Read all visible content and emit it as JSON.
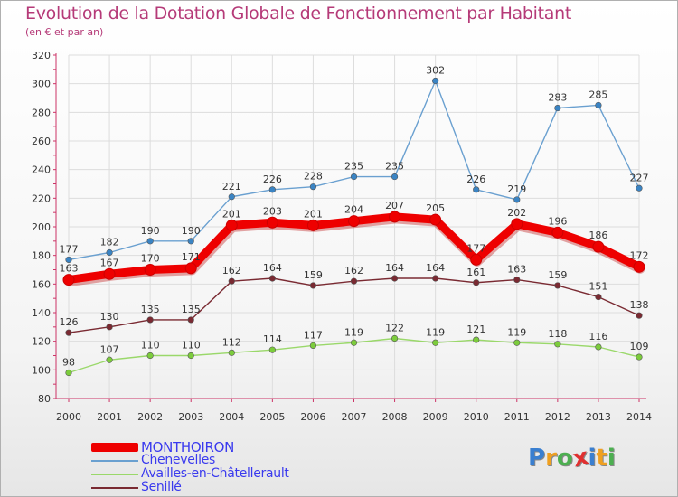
{
  "chart_data": {
    "type": "line",
    "title": "Evolution de la Dotation Globale de Fonctionnement par Habitant",
    "subtitle": "(en € et par an)",
    "xlabel": "",
    "ylabel": "",
    "ylim": [
      80,
      320
    ],
    "y_ticks": [
      80,
      100,
      120,
      140,
      160,
      180,
      200,
      220,
      240,
      260,
      280,
      300,
      320
    ],
    "categories": [
      "2000",
      "2001",
      "2002",
      "2003",
      "2004",
      "2005",
      "2006",
      "2007",
      "2008",
      "2009",
      "2010",
      "2011",
      "2012",
      "2013",
      "2014"
    ],
    "grid": true,
    "legend_position": "bottom-left",
    "series": [
      {
        "name": "Chenevelles",
        "color": "#6aa0d0",
        "marker": "#3a84c4",
        "values": [
          177,
          182,
          190,
          190,
          221,
          226,
          228,
          235,
          235,
          302,
          226,
          219,
          283,
          285,
          227
        ]
      },
      {
        "name": "Availles-en-Châtellerault",
        "color": "#9ad86a",
        "marker": "#7ccc3c",
        "values": [
          98,
          107,
          110,
          110,
          112,
          114,
          117,
          119,
          122,
          119,
          121,
          119,
          118,
          116,
          109
        ]
      },
      {
        "name": "Senillé",
        "color": "#7a2a32",
        "marker": "#7a2a32",
        "values": [
          126,
          130,
          135,
          135,
          162,
          164,
          159,
          162,
          164,
          164,
          161,
          163,
          159,
          151,
          138
        ]
      },
      {
        "name": "MONTHOIRON",
        "color": "#ee0000",
        "marker": "#ee0000",
        "values": [
          163,
          167,
          170,
          171,
          201,
          203,
          201,
          204,
          207,
          205,
          177,
          202,
          196,
          186,
          172
        ]
      }
    ],
    "legend": [
      "MONTHOIRON",
      "Chenevelles",
      "Availles-en-Châtellerault",
      "Senillé"
    ]
  },
  "brand": {
    "letters": [
      "P",
      "r",
      "o",
      "x",
      "i",
      "t",
      "i"
    ],
    "colors": [
      "#3a7fd0",
      "#f0a020",
      "#4caf50",
      "#e03030",
      "#3a7fd0",
      "#f0a020",
      "#4caf50"
    ]
  }
}
